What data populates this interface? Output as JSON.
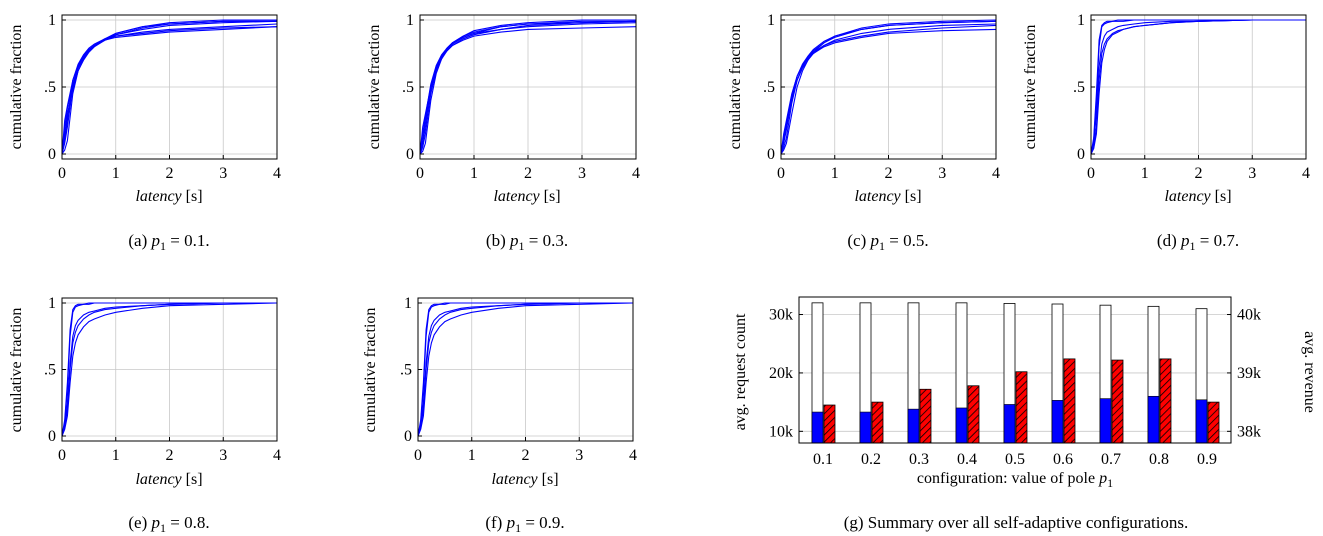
{
  "cdf_panels": [
    {
      "caption_prefix": "(a) ",
      "caption_var": "p",
      "caption_sub": "1",
      "caption_rest": " = 0.1.",
      "chart_data": {
        "type": "line",
        "ylabel": "cumulative fraction",
        "xlabel_italic": "latency",
        "xlabel_unit": " [s]",
        "xlim": [
          0,
          4
        ],
        "ylim": [
          0,
          1
        ],
        "xticks": [
          "0",
          "1",
          "2",
          "3",
          "4"
        ],
        "yticks": [
          "0",
          ".5",
          "1"
        ],
        "series_color": "#0000ff",
        "grid": true,
        "x": [
          0,
          0.05,
          0.1,
          0.2,
          0.3,
          0.4,
          0.5,
          0.6,
          0.8,
          1.0,
          1.5,
          2.0,
          3.0,
          4.0
        ],
        "series": [
          {
            "values": [
              0.0,
              0.08,
              0.2,
              0.5,
              0.65,
              0.73,
              0.78,
              0.81,
              0.86,
              0.9,
              0.95,
              0.97,
              0.99,
              0.99
            ]
          },
          {
            "values": [
              0.0,
              0.1,
              0.25,
              0.55,
              0.66,
              0.73,
              0.78,
              0.81,
              0.86,
              0.89,
              0.93,
              0.96,
              0.98,
              0.99
            ]
          },
          {
            "values": [
              0.0,
              0.12,
              0.28,
              0.5,
              0.64,
              0.72,
              0.77,
              0.81,
              0.85,
              0.88,
              0.91,
              0.93,
              0.95,
              0.97
            ]
          },
          {
            "values": [
              0.0,
              0.2,
              0.34,
              0.52,
              0.65,
              0.73,
              0.78,
              0.81,
              0.85,
              0.87,
              0.89,
              0.91,
              0.93,
              0.95
            ]
          },
          {
            "values": [
              0.0,
              0.25,
              0.36,
              0.55,
              0.67,
              0.74,
              0.79,
              0.82,
              0.86,
              0.88,
              0.9,
              0.92,
              0.94,
              0.95
            ]
          },
          {
            "values": [
              0.0,
              0.03,
              0.1,
              0.45,
              0.62,
              0.71,
              0.77,
              0.81,
              0.86,
              0.9,
              0.95,
              0.98,
              1.0,
              1.0
            ]
          },
          {
            "values": [
              0.0,
              0.15,
              0.3,
              0.48,
              0.62,
              0.7,
              0.76,
              0.8,
              0.85,
              0.89,
              0.94,
              0.97,
              0.99,
              0.99
            ]
          }
        ]
      }
    },
    {
      "caption_prefix": "(b) ",
      "caption_var": "p",
      "caption_sub": "1",
      "caption_rest": " = 0.3.",
      "chart_data": {
        "type": "line",
        "ylabel": "cumulative fraction",
        "xlabel_italic": "latency",
        "xlabel_unit": " [s]",
        "xlim": [
          0,
          4
        ],
        "ylim": [
          0,
          1
        ],
        "xticks": [
          "0",
          "1",
          "2",
          "3",
          "4"
        ],
        "yticks": [
          "0",
          ".5",
          "1"
        ],
        "series_color": "#0000ff",
        "grid": true,
        "x": [
          0,
          0.05,
          0.1,
          0.2,
          0.3,
          0.4,
          0.5,
          0.6,
          0.8,
          1.0,
          1.5,
          2.0,
          3.0,
          4.0
        ],
        "series": [
          {
            "values": [
              0.0,
              0.05,
              0.15,
              0.45,
              0.62,
              0.72,
              0.78,
              0.82,
              0.87,
              0.9,
              0.95,
              0.97,
              0.99,
              0.99
            ]
          },
          {
            "values": [
              0.0,
              0.08,
              0.2,
              0.5,
              0.65,
              0.73,
              0.79,
              0.83,
              0.88,
              0.91,
              0.95,
              0.97,
              0.98,
              0.99
            ]
          },
          {
            "values": [
              0.0,
              0.2,
              0.3,
              0.5,
              0.64,
              0.72,
              0.77,
              0.81,
              0.85,
              0.88,
              0.91,
              0.93,
              0.94,
              0.95
            ]
          },
          {
            "values": [
              0.0,
              0.1,
              0.25,
              0.48,
              0.63,
              0.71,
              0.77,
              0.81,
              0.86,
              0.89,
              0.93,
              0.96,
              0.98,
              0.99
            ]
          },
          {
            "values": [
              0.0,
              0.02,
              0.08,
              0.4,
              0.6,
              0.71,
              0.78,
              0.83,
              0.88,
              0.92,
              0.96,
              0.98,
              1.0,
              1.0
            ]
          },
          {
            "values": [
              0.0,
              0.15,
              0.28,
              0.52,
              0.66,
              0.74,
              0.79,
              0.83,
              0.87,
              0.9,
              0.93,
              0.95,
              0.97,
              0.98
            ]
          }
        ]
      }
    },
    {
      "caption_prefix": "(c) ",
      "caption_var": "p",
      "caption_sub": "1",
      "caption_rest": " = 0.5.",
      "chart_data": {
        "type": "line",
        "ylabel": "cumulative fraction",
        "xlabel_italic": "latency",
        "xlabel_unit": " [s]",
        "xlim": [
          0,
          4
        ],
        "ylim": [
          0,
          1
        ],
        "xticks": [
          "0",
          "1",
          "2",
          "3",
          "4"
        ],
        "yticks": [
          "0",
          ".5",
          "1"
        ],
        "series_color": "#0000ff",
        "grid": true,
        "x": [
          0,
          0.05,
          0.1,
          0.2,
          0.3,
          0.4,
          0.5,
          0.6,
          0.8,
          1.0,
          1.5,
          2.0,
          3.0,
          4.0
        ],
        "series": [
          {
            "values": [
              0.0,
              0.05,
              0.12,
              0.38,
              0.55,
              0.65,
              0.72,
              0.77,
              0.83,
              0.87,
              0.93,
              0.96,
              0.98,
              0.99
            ]
          },
          {
            "values": [
              0.0,
              0.08,
              0.18,
              0.42,
              0.58,
              0.67,
              0.73,
              0.78,
              0.84,
              0.88,
              0.93,
              0.96,
              0.98,
              0.99
            ]
          },
          {
            "values": [
              0.0,
              0.12,
              0.22,
              0.44,
              0.58,
              0.66,
              0.71,
              0.75,
              0.8,
              0.83,
              0.87,
              0.9,
              0.92,
              0.93
            ]
          },
          {
            "values": [
              0.0,
              0.15,
              0.25,
              0.45,
              0.58,
              0.66,
              0.72,
              0.76,
              0.81,
              0.84,
              0.88,
              0.91,
              0.94,
              0.96
            ]
          },
          {
            "values": [
              0.0,
              0.03,
              0.08,
              0.3,
              0.5,
              0.62,
              0.7,
              0.76,
              0.83,
              0.88,
              0.94,
              0.97,
              0.99,
              1.0
            ]
          },
          {
            "values": [
              0.0,
              0.1,
              0.2,
              0.4,
              0.55,
              0.64,
              0.7,
              0.75,
              0.81,
              0.85,
              0.9,
              0.93,
              0.96,
              0.97
            ]
          }
        ]
      }
    },
    {
      "caption_prefix": "(d) ",
      "caption_var": "p",
      "caption_sub": "1",
      "caption_rest": " = 0.7.",
      "chart_data": {
        "type": "line",
        "ylabel": "cumulative fraction",
        "xlabel_italic": "latency",
        "xlabel_unit": " [s]",
        "xlim": [
          0,
          4
        ],
        "ylim": [
          0,
          1
        ],
        "xticks": [
          "0",
          "1",
          "2",
          "3",
          "4"
        ],
        "yticks": [
          "0",
          ".5",
          "1"
        ],
        "series_color": "#0000ff",
        "grid": true,
        "x": [
          0,
          0.05,
          0.1,
          0.15,
          0.2,
          0.25,
          0.3,
          0.4,
          0.5,
          0.6,
          0.8,
          1.0,
          1.5,
          2.0,
          3.0,
          4.0
        ],
        "series": [
          {
            "values": [
              0.0,
              0.1,
              0.4,
              0.8,
              0.95,
              0.97,
              0.98,
              0.99,
              0.99,
              0.99,
              1.0,
              1.0,
              1.0,
              1.0,
              1.0,
              1.0
            ]
          },
          {
            "values": [
              0.0,
              0.05,
              0.2,
              0.55,
              0.75,
              0.82,
              0.86,
              0.9,
              0.92,
              0.93,
              0.95,
              0.96,
              0.98,
              0.99,
              1.0,
              1.0
            ]
          },
          {
            "values": [
              0.0,
              0.08,
              0.3,
              0.65,
              0.82,
              0.88,
              0.91,
              0.93,
              0.95,
              0.96,
              0.97,
              0.98,
              0.99,
              0.99,
              1.0,
              1.0
            ]
          },
          {
            "values": [
              0.0,
              0.04,
              0.15,
              0.45,
              0.68,
              0.78,
              0.84,
              0.89,
              0.91,
              0.93,
              0.95,
              0.96,
              0.98,
              0.99,
              1.0,
              1.0
            ]
          },
          {
            "values": [
              0.0,
              0.12,
              0.45,
              0.85,
              0.96,
              0.98,
              0.99,
              0.99,
              1.0,
              1.0,
              1.0,
              1.0,
              1.0,
              1.0,
              1.0,
              1.0
            ]
          }
        ]
      }
    },
    {
      "caption_prefix": "(e) ",
      "caption_var": "p",
      "caption_sub": "1",
      "caption_rest": " = 0.8.",
      "chart_data": {
        "type": "line",
        "ylabel": "cumulative fraction",
        "xlabel_italic": "latency",
        "xlabel_unit": " [s]",
        "xlim": [
          0,
          4
        ],
        "ylim": [
          0,
          1
        ],
        "xticks": [
          "0",
          "1",
          "2",
          "3",
          "4"
        ],
        "yticks": [
          "0",
          ".5",
          "1"
        ],
        "series_color": "#0000ff",
        "grid": true,
        "x": [
          0,
          0.05,
          0.1,
          0.15,
          0.2,
          0.25,
          0.3,
          0.4,
          0.5,
          0.6,
          0.8,
          1.0,
          1.5,
          2.0,
          3.0,
          4.0
        ],
        "series": [
          {
            "values": [
              0.0,
              0.1,
              0.35,
              0.75,
              0.93,
              0.97,
              0.98,
              0.99,
              0.99,
              1.0,
              1.0,
              1.0,
              1.0,
              1.0,
              1.0,
              1.0
            ]
          },
          {
            "values": [
              0.0,
              0.05,
              0.15,
              0.4,
              0.6,
              0.7,
              0.76,
              0.82,
              0.86,
              0.88,
              0.91,
              0.93,
              0.96,
              0.98,
              0.99,
              1.0
            ]
          },
          {
            "values": [
              0.0,
              0.07,
              0.25,
              0.55,
              0.75,
              0.83,
              0.87,
              0.91,
              0.93,
              0.94,
              0.96,
              0.97,
              0.98,
              0.99,
              1.0,
              1.0
            ]
          },
          {
            "values": [
              0.0,
              0.06,
              0.2,
              0.5,
              0.7,
              0.78,
              0.83,
              0.88,
              0.91,
              0.93,
              0.95,
              0.96,
              0.98,
              0.99,
              1.0,
              1.0
            ]
          },
          {
            "values": [
              0.0,
              0.12,
              0.4,
              0.8,
              0.95,
              0.98,
              0.99,
              0.99,
              1.0,
              1.0,
              1.0,
              1.0,
              1.0,
              1.0,
              1.0,
              1.0
            ]
          }
        ]
      }
    },
    {
      "caption_prefix": "(f) ",
      "caption_var": "p",
      "caption_sub": "1",
      "caption_rest": " = 0.9.",
      "chart_data": {
        "type": "line",
        "ylabel": "cumulative fraction",
        "xlabel_italic": "latency",
        "xlabel_unit": " [s]",
        "xlim": [
          0,
          4
        ],
        "ylim": [
          0,
          1
        ],
        "xticks": [
          "0",
          "1",
          "2",
          "3",
          "4"
        ],
        "yticks": [
          "0",
          ".5",
          "1"
        ],
        "series_color": "#0000ff",
        "grid": true,
        "x": [
          0,
          0.05,
          0.1,
          0.15,
          0.2,
          0.25,
          0.3,
          0.4,
          0.5,
          0.6,
          0.8,
          1.0,
          1.5,
          2.0,
          3.0,
          4.0
        ],
        "series": [
          {
            "values": [
              0.0,
              0.1,
              0.35,
              0.75,
              0.93,
              0.97,
              0.98,
              0.99,
              0.99,
              1.0,
              1.0,
              1.0,
              1.0,
              1.0,
              1.0,
              1.0
            ]
          },
          {
            "values": [
              0.0,
              0.05,
              0.15,
              0.4,
              0.6,
              0.7,
              0.76,
              0.82,
              0.86,
              0.88,
              0.91,
              0.93,
              0.96,
              0.98,
              0.99,
              1.0
            ]
          },
          {
            "values": [
              0.0,
              0.07,
              0.25,
              0.55,
              0.75,
              0.83,
              0.87,
              0.91,
              0.93,
              0.94,
              0.96,
              0.97,
              0.98,
              0.99,
              1.0,
              1.0
            ]
          },
          {
            "values": [
              0.0,
              0.06,
              0.2,
              0.5,
              0.7,
              0.78,
              0.83,
              0.88,
              0.91,
              0.93,
              0.95,
              0.96,
              0.98,
              0.99,
              1.0,
              1.0
            ]
          },
          {
            "values": [
              0.0,
              0.12,
              0.4,
              0.8,
              0.95,
              0.98,
              0.99,
              0.99,
              1.0,
              1.0,
              1.0,
              1.0,
              1.0,
              1.0,
              1.0,
              1.0
            ]
          }
        ]
      }
    }
  ],
  "summary_panel": {
    "caption": "(g) Summary over all self-adaptive configurations.",
    "chart_data": {
      "type": "bar",
      "categories": [
        "0.1",
        "0.2",
        "0.3",
        "0.4",
        "0.5",
        "0.6",
        "0.7",
        "0.8",
        "0.9"
      ],
      "xlabel_text": "configuration: value of pole ",
      "xlabel_var": "p",
      "xlabel_sub": "1",
      "ylabel_left": "avg. request count",
      "ylabel_right": "avg. revenue",
      "ylim_left": [
        8000,
        33000
      ],
      "ylim_right": [
        37800,
        40300
      ],
      "yticks_left": [
        {
          "value": 10000,
          "label": "10k"
        },
        {
          "value": 20000,
          "label": "20k"
        },
        {
          "value": 30000,
          "label": "30k"
        }
      ],
      "yticks_right": [
        {
          "value": 38000,
          "label": "38k"
        },
        {
          "value": 39000,
          "label": "39k"
        },
        {
          "value": 40000,
          "label": "40k"
        }
      ],
      "series": [
        {
          "axis": "left",
          "style": "outline",
          "color": "#000000",
          "values": [
            32000,
            32000,
            32000,
            32000,
            31900,
            31800,
            31600,
            31400,
            31000
          ]
        },
        {
          "axis": "left",
          "style": "solid",
          "color": "#0000ff",
          "values": [
            13300,
            13300,
            13800,
            14000,
            14600,
            15300,
            15600,
            16000,
            15400
          ]
        },
        {
          "axis": "right",
          "style": "hatched",
          "color": "#ff0000",
          "values": [
            38450,
            38500,
            38720,
            38780,
            39020,
            39240,
            39220,
            39240,
            38500
          ]
        }
      ]
    }
  }
}
